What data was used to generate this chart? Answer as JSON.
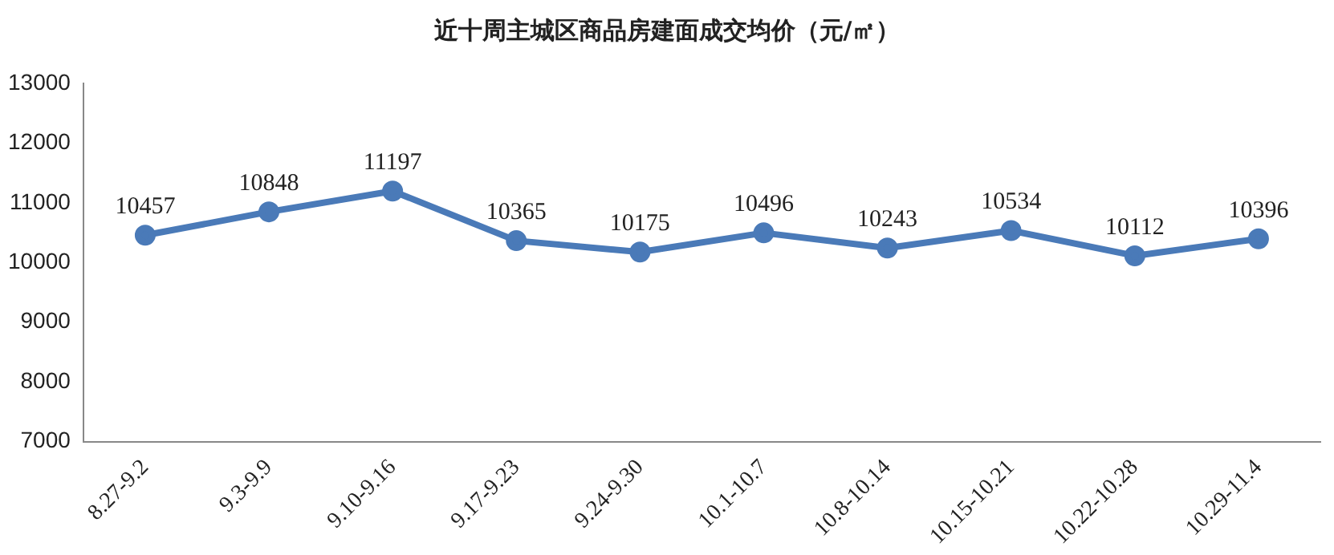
{
  "chart_data": {
    "type": "line",
    "title": "近十周主城区商品房建面成交均价（元/㎡）",
    "categories": [
      "8.27-9.2",
      "9.3-9.9",
      "9.10-9.16",
      "9.17-9.23",
      "9.24-9.30",
      "10.1-10.7",
      "10.8-10.14",
      "10.15-10.21",
      "10.22-10.28",
      "10.29-11.4"
    ],
    "values": [
      10457,
      10848,
      11197,
      10365,
      10175,
      10496,
      10243,
      10534,
      10112,
      10396
    ],
    "color": "#4a7ab8",
    "ylim": [
      7000,
      13000
    ],
    "yticks": [
      7000,
      8000,
      9000,
      10000,
      11000,
      12000,
      13000
    ],
    "grid": false,
    "legend": false,
    "marker": "circle",
    "line_style": "solid",
    "data_labels": true
  }
}
